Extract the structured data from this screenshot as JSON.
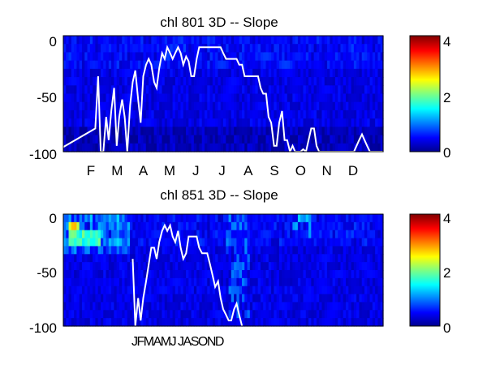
{
  "chart_data": [
    {
      "type": "heatmap",
      "title": "chl  801 3D   -- Slope",
      "y_ticks": [
        "0",
        "-50",
        "-100"
      ],
      "y_range": [
        -100,
        0
      ],
      "x_ticks": [
        "F",
        "M",
        "A",
        "M",
        "J",
        "J",
        "A",
        "S",
        "O",
        "N",
        "D"
      ],
      "colorbar": {
        "ticks": [
          "4",
          "2",
          "0"
        ],
        "range": [
          0,
          4
        ],
        "colormap": "jet"
      },
      "line_series": {
        "x": [
          0.0,
          0.017,
          0.025,
          0.033,
          0.042,
          0.05,
          0.059,
          0.067,
          0.075,
          0.084,
          0.092,
          0.1,
          0.109,
          0.117,
          0.125,
          0.134,
          0.142,
          0.15,
          0.159,
          0.167,
          0.175,
          0.184,
          0.192,
          0.2,
          0.209,
          0.217,
          0.225,
          0.234,
          0.242,
          0.25,
          0.259,
          0.267,
          0.275,
          0.284,
          0.292,
          0.3,
          0.309,
          0.317,
          0.325,
          0.334,
          0.342,
          0.35,
          0.359,
          0.367,
          0.375,
          0.384,
          0.392,
          0.4,
          0.409,
          0.417,
          0.425,
          0.434,
          0.442,
          0.45,
          0.459,
          0.467,
          0.475,
          0.484,
          0.492,
          0.5,
          0.509,
          0.517,
          0.525,
          0.534,
          0.542,
          0.55,
          0.559,
          0.567,
          0.575,
          0.584,
          0.592,
          0.6,
          0.609,
          0.617,
          0.625,
          0.634,
          0.642,
          0.65,
          0.659,
          0.667,
          0.675,
          0.684,
          0.692,
          0.7,
          0.709,
          0.717,
          0.725,
          0.734,
          0.742,
          0.75,
          0.759,
          0.767,
          0.775,
          0.784,
          0.792,
          0.8,
          0.809,
          0.817,
          0.825,
          0.834,
          0.842,
          0.85,
          0.859,
          0.867,
          0.875,
          0.884,
          0.892,
          0.9,
          0.909,
          0.917,
          0.925,
          0.934,
          0.942,
          0.95,
          0.959,
          0.967,
          0.975,
          0.984,
          0.992,
          1.0
        ],
        "y": [
          -96,
          null,
          null,
          null,
          null,
          null,
          null,
          null,
          null,
          null,
          null,
          -80,
          -35,
          -100,
          -100,
          -70,
          -90,
          -65,
          -45,
          -95,
          -70,
          -55,
          -70,
          -100,
          -60,
          -40,
          -30,
          -55,
          -75,
          -35,
          -25,
          -20,
          -25,
          -40,
          -45,
          -28,
          -15,
          -20,
          -10,
          -15,
          -20,
          -15,
          -10,
          -15,
          -25,
          -18,
          -22,
          -35,
          -35,
          -20,
          -10,
          -10,
          -10,
          -10,
          -10,
          -10,
          -10,
          -10,
          -10,
          -15,
          -20,
          -20,
          -20,
          -20,
          -20,
          -25,
          -25,
          -35,
          -35,
          -35,
          -35,
          -35,
          -35,
          -45,
          -50,
          -50,
          -70,
          -75,
          -95,
          -95,
          -75,
          -65,
          -90,
          -90,
          -100,
          -95,
          -100,
          -100,
          -100,
          -98,
          -100,
          -90,
          -80,
          -80,
          -95,
          -100,
          -100,
          -100,
          -100,
          -100,
          -100,
          -100,
          -100,
          -100,
          -100,
          -100,
          -100,
          -100,
          -100,
          -95,
          -90,
          -85,
          -90,
          -95,
          -100,
          -100,
          -100,
          -100,
          -100,
          -100
        ]
      }
    },
    {
      "type": "heatmap",
      "title": "chl  851 3D   -- Slope",
      "y_ticks": [
        "0",
        "-50",
        "-100"
      ],
      "y_range": [
        -100,
        0
      ],
      "x_ticks": [
        "JFMAMJ JASOND"
      ],
      "colorbar": {
        "ticks": [
          "4",
          "2",
          "0"
        ],
        "range": [
          0,
          4
        ],
        "colormap": "jet"
      },
      "line_series": {
        "x": [
          0.0,
          0.017,
          0.025,
          0.033,
          0.042,
          0.05,
          0.059,
          0.067,
          0.075,
          0.084,
          0.092,
          0.1,
          0.109,
          0.117,
          0.125,
          0.134,
          0.142,
          0.15,
          0.159,
          0.167,
          0.175,
          0.184,
          0.192,
          0.2,
          0.209,
          0.217,
          0.225,
          0.234,
          0.242,
          0.25,
          0.259,
          0.267,
          0.275,
          0.284,
          0.292,
          0.3,
          0.309,
          0.317,
          0.325,
          0.334,
          0.342,
          0.35,
          0.359,
          0.367,
          0.375,
          0.384,
          0.392,
          0.4,
          0.409,
          0.417,
          0.425,
          0.434,
          0.442,
          0.45,
          0.459,
          0.467,
          0.475,
          0.484,
          0.492,
          0.5,
          0.509,
          0.517,
          0.525,
          0.534,
          0.542,
          0.55,
          0.559,
          0.567
        ],
        "y": [
          null,
          null,
          null,
          null,
          null,
          null,
          null,
          null,
          null,
          null,
          null,
          null,
          null,
          null,
          null,
          null,
          null,
          null,
          null,
          null,
          null,
          null,
          null,
          null,
          null,
          -40,
          -100,
          -75,
          -95,
          -75,
          -60,
          -45,
          -30,
          -30,
          -40,
          -25,
          -15,
          -10,
          -15,
          -10,
          -20,
          -25,
          -15,
          -30,
          -40,
          -35,
          -20,
          -20,
          -20,
          -20,
          -30,
          -35,
          -35,
          -35,
          -45,
          -55,
          -65,
          -60,
          -75,
          -85,
          -90,
          -95,
          -95,
          -85,
          -80,
          -90,
          -100,
          null
        ]
      }
    }
  ]
}
